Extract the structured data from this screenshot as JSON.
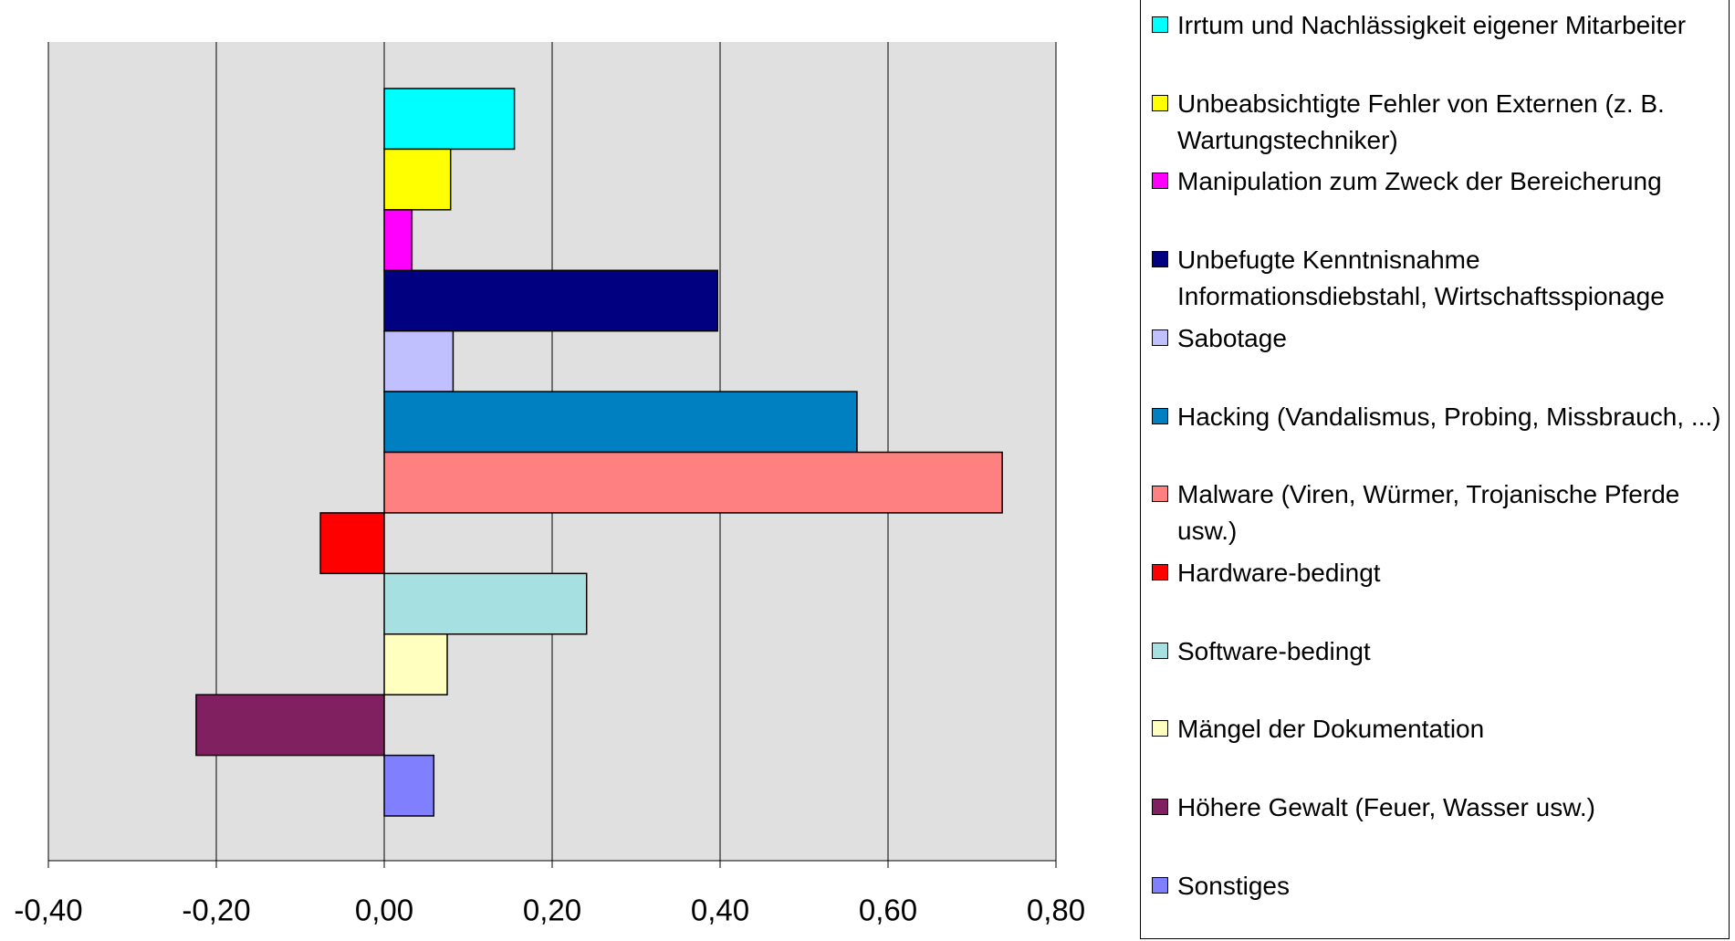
{
  "chart_data": {
    "type": "bar",
    "orientation": "horizontal",
    "xlim": [
      -0.4,
      0.8
    ],
    "xticks": [
      {
        "value": -0.4,
        "label": "-0,40"
      },
      {
        "value": -0.2,
        "label": "-0,20"
      },
      {
        "value": 0,
        "label": "0,00"
      },
      {
        "value": 0.2,
        "label": "0,20"
      },
      {
        "value": 0.4,
        "label": "0,40"
      },
      {
        "value": 0.6,
        "label": "0,60"
      },
      {
        "value": 0.8,
        "label": "0,80"
      }
    ],
    "grid": true,
    "legend": "right",
    "series": [
      {
        "name": "Irrtum und Nachlässigkeit eigener Mitarbeiter",
        "color": "#00ffff",
        "values": [
          0.155
        ]
      },
      {
        "name": "Unbeabsichtigte Fehler von Externen (z. B. Wartungstechniker)",
        "color": "#ffff00",
        "values": [
          0.079
        ]
      },
      {
        "name": "Manipulation zum Zweck der Bereicherung",
        "color": "#ff00ff",
        "values": [
          0.033
        ]
      },
      {
        "name": "Unbefugte Kenntnisnahme Informationsdiebstahl, Wirtschaftsspionage",
        "color": "#000080",
        "values": [
          0.397
        ]
      },
      {
        "name": "Sabotage",
        "color": "#c0c0ff",
        "values": [
          0.082
        ]
      },
      {
        "name": "Hacking (Vandalismus, Probing, Missbrauch, ...)",
        "color": "#0080c0",
        "values": [
          0.563
        ]
      },
      {
        "name": "Malware (Viren, Würmer, Trojanische Pferde usw.)",
        "color": "#ff8080",
        "values": [
          0.736
        ]
      },
      {
        "name": "Hardware-bedingt",
        "color": "#ff0000",
        "values": [
          -0.076
        ]
      },
      {
        "name": "Software-bedingt",
        "color": "#a6e0e0",
        "values": [
          0.241
        ]
      },
      {
        "name": "Mängel der Dokumentation",
        "color": "#ffffc0",
        "values": [
          0.075
        ]
      },
      {
        "name": "Höhere Gewalt (Feuer, Wasser usw.)",
        "color": "#802060",
        "values": [
          -0.224
        ]
      },
      {
        "name": "Sonstiges",
        "color": "#8080ff",
        "values": [
          0.059
        ]
      }
    ]
  }
}
